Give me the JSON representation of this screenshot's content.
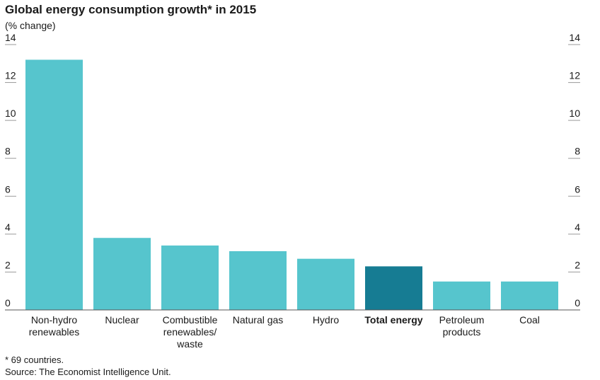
{
  "colors": {
    "bar": "#56c5cd",
    "highlight": "#167c93",
    "grid": "#9a9a9a",
    "baseline": "#555555"
  },
  "chart_data": {
    "type": "bar",
    "title": "Global energy consumption growth* in 2015",
    "subtitle": "(% change)",
    "categories": [
      [
        "Non-hydro",
        "renewables"
      ],
      [
        "Nuclear"
      ],
      [
        "Combustible",
        "renewables/",
        "waste"
      ],
      [
        "Natural gas"
      ],
      [
        "Hydro"
      ],
      [
        "Total energy"
      ],
      [
        "Petroleum",
        "products"
      ],
      [
        "Coal"
      ]
    ],
    "values": [
      13.2,
      3.8,
      3.4,
      3.1,
      2.7,
      2.3,
      1.5,
      1.5
    ],
    "highlight_index": 5,
    "ylim": [
      0,
      14
    ],
    "yticks": [
      0,
      2,
      4,
      6,
      8,
      10,
      12,
      14
    ],
    "axes": "left and right",
    "grid": false,
    "footnote": "* 69 countries.",
    "source": "Source: The Economist Intelligence Unit."
  }
}
